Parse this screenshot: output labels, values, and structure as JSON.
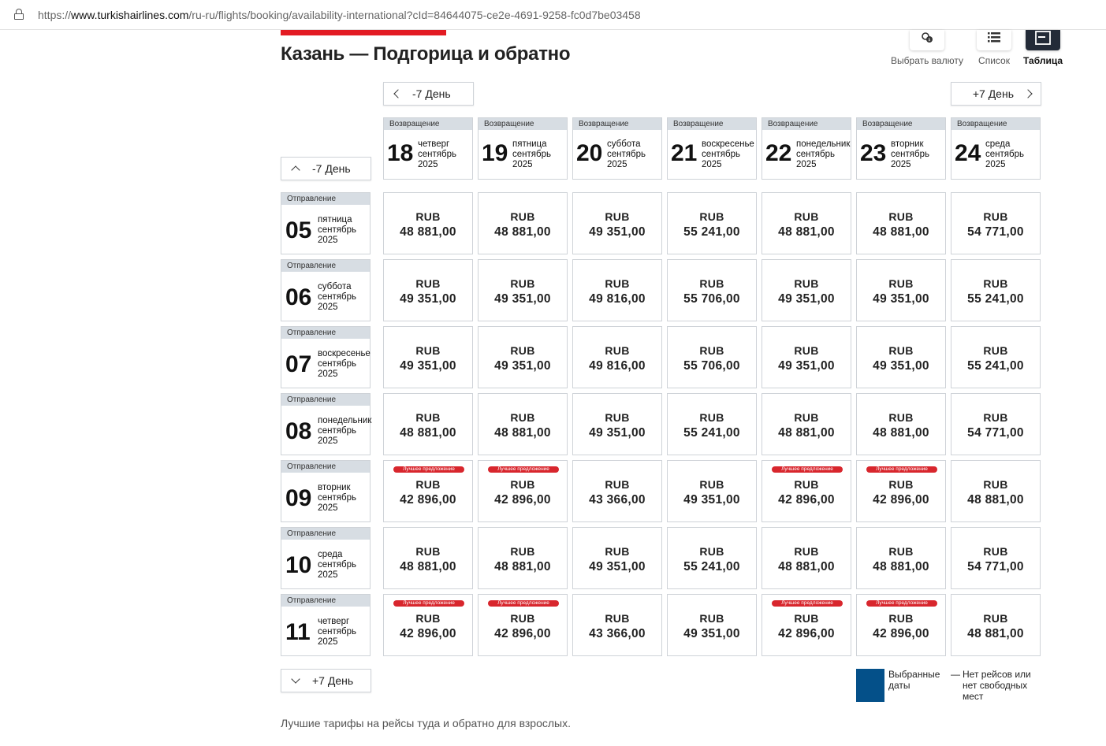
{
  "browser": {
    "url_prefix": "https://",
    "url_host": "www.turkishairlines.com",
    "url_path": "/ru-ru/flights/booking/availability-international?cId=84644075-ce2e-4691-9258-fc0d7be03458"
  },
  "page": {
    "title": "Казань — Подгорица и обратно"
  },
  "view_options": [
    {
      "label": "Выбрать валюту",
      "icon": "currency-icon",
      "active": false
    },
    {
      "label": "Список",
      "icon": "list-icon",
      "active": false
    },
    {
      "label": "Таблица",
      "icon": "table-icon",
      "active": true
    }
  ],
  "nav": {
    "prev_week_top": "-7 День",
    "next_week_top": "+7 День",
    "prev_week_left": "-7 День",
    "next_week_left": "+7 День"
  },
  "return_tag": "Возвращение",
  "departure_tag": "Отправление",
  "return_dates": [
    {
      "day": "18",
      "weekday": "четверг",
      "month": "сентябрь",
      "year": "2025"
    },
    {
      "day": "19",
      "weekday": "пятница",
      "month": "сентябрь",
      "year": "2025"
    },
    {
      "day": "20",
      "weekday": "суббота",
      "month": "сентябрь",
      "year": "2025"
    },
    {
      "day": "21",
      "weekday": "воскресенье",
      "month": "сентябрь",
      "year": "2025"
    },
    {
      "day": "22",
      "weekday": "понедельник",
      "month": "сентябрь",
      "year": "2025"
    },
    {
      "day": "23",
      "weekday": "вторник",
      "month": "сентябрь",
      "year": "2025"
    },
    {
      "day": "24",
      "weekday": "среда",
      "month": "сентябрь",
      "year": "2025"
    }
  ],
  "departure_dates": [
    {
      "day": "05",
      "weekday": "пятница",
      "month": "сентябрь",
      "year": "2025"
    },
    {
      "day": "06",
      "weekday": "суббота",
      "month": "сентябрь",
      "year": "2025"
    },
    {
      "day": "07",
      "weekday": "воскресенье",
      "month": "сентябрь",
      "year": "2025"
    },
    {
      "day": "08",
      "weekday": "понедельник",
      "month": "сентябрь",
      "year": "2025"
    },
    {
      "day": "09",
      "weekday": "вторник",
      "month": "сентябрь",
      "year": "2025"
    },
    {
      "day": "10",
      "weekday": "среда",
      "month": "сентябрь",
      "year": "2025"
    },
    {
      "day": "11",
      "weekday": "четверг",
      "month": "сентябрь",
      "year": "2025"
    }
  ],
  "currency": "RUB",
  "best_offer_label": "Лучшее предложение",
  "prices": [
    [
      "48 881,00",
      "48 881,00",
      "49 351,00",
      "55 241,00",
      "48 881,00",
      "48 881,00",
      "54 771,00"
    ],
    [
      "49 351,00",
      "49 351,00",
      "49 816,00",
      "55 706,00",
      "49 351,00",
      "49 351,00",
      "55 241,00"
    ],
    [
      "49 351,00",
      "49 351,00",
      "49 816,00",
      "55 706,00",
      "49 351,00",
      "49 351,00",
      "55 241,00"
    ],
    [
      "48 881,00",
      "48 881,00",
      "49 351,00",
      "55 241,00",
      "48 881,00",
      "48 881,00",
      "54 771,00"
    ],
    [
      "42 896,00",
      "42 896,00",
      "43 366,00",
      "49 351,00",
      "42 896,00",
      "42 896,00",
      "48 881,00"
    ],
    [
      "48 881,00",
      "48 881,00",
      "49 351,00",
      "55 241,00",
      "48 881,00",
      "48 881,00",
      "54 771,00"
    ],
    [
      "42 896,00",
      "42 896,00",
      "43 366,00",
      "49 351,00",
      "42 896,00",
      "42 896,00",
      "48 881,00"
    ]
  ],
  "best_offer": [
    [
      false,
      false,
      false,
      false,
      false,
      false,
      false
    ],
    [
      false,
      false,
      false,
      false,
      false,
      false,
      false
    ],
    [
      false,
      false,
      false,
      false,
      false,
      false,
      false
    ],
    [
      false,
      false,
      false,
      false,
      false,
      false,
      false
    ],
    [
      true,
      true,
      false,
      false,
      true,
      true,
      false
    ],
    [
      false,
      false,
      false,
      false,
      false,
      false,
      false
    ],
    [
      true,
      true,
      false,
      false,
      true,
      true,
      false
    ]
  ],
  "legend": {
    "selected_color": "#045089",
    "selected_label": "Выбранные даты",
    "dash": "—",
    "no_flights_label": "Нет рейсов или нет свободных мест"
  },
  "footer_note": "Лучшие тарифы на рейсы туда и обратно для взрослых."
}
